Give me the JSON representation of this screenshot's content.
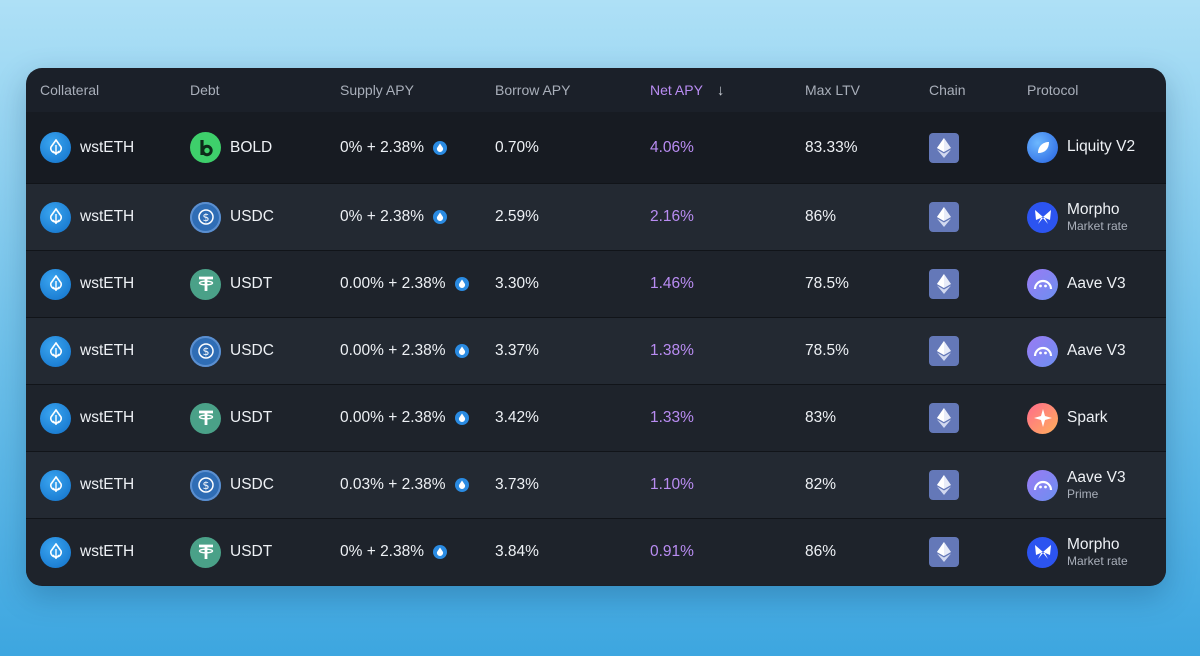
{
  "header": {
    "collateral": "Collateral",
    "debt": "Debt",
    "supply_apy": "Supply APY",
    "borrow_apy": "Borrow APY",
    "net_apy": "Net APY",
    "sort_icon": "arrow-down-icon",
    "max_ltv": "Max LTV",
    "chain": "Chain",
    "protocol": "Protocol"
  },
  "rows": [
    {
      "collateral": "wstETH",
      "debt": "BOLD",
      "debt_icon": "bold",
      "supply": "0% + 2.38%",
      "borrow": "0.70%",
      "net": "4.06%",
      "ltv": "83.33%",
      "chain": "ethereum",
      "protocol": "Liquity V2",
      "protocol_sub": "",
      "protocol_icon": "liquity"
    },
    {
      "collateral": "wstETH",
      "debt": "USDC",
      "debt_icon": "usdc",
      "supply": "0% + 2.38%",
      "borrow": "2.59%",
      "net": "2.16%",
      "ltv": "86%",
      "chain": "ethereum",
      "protocol": "Morpho",
      "protocol_sub": "Market rate",
      "protocol_icon": "morpho"
    },
    {
      "collateral": "wstETH",
      "debt": "USDT",
      "debt_icon": "usdt",
      "supply": "0.00% + 2.38%",
      "borrow": "3.30%",
      "net": "1.46%",
      "ltv": "78.5%",
      "chain": "ethereum",
      "protocol": "Aave V3",
      "protocol_sub": "",
      "protocol_icon": "aave"
    },
    {
      "collateral": "wstETH",
      "debt": "USDC",
      "debt_icon": "usdc",
      "supply": "0.00% + 2.38%",
      "borrow": "3.37%",
      "net": "1.38%",
      "ltv": "78.5%",
      "chain": "ethereum",
      "protocol": "Aave V3",
      "protocol_sub": "",
      "protocol_icon": "aave"
    },
    {
      "collateral": "wstETH",
      "debt": "USDT",
      "debt_icon": "usdt",
      "supply": "0.00% + 2.38%",
      "borrow": "3.42%",
      "net": "1.33%",
      "ltv": "83%",
      "chain": "ethereum",
      "protocol": "Spark",
      "protocol_sub": "",
      "protocol_icon": "spark"
    },
    {
      "collateral": "wstETH",
      "debt": "USDC",
      "debt_icon": "usdc",
      "supply": "0.03% + 2.38%",
      "borrow": "3.73%",
      "net": "1.10%",
      "ltv": "82%",
      "chain": "ethereum",
      "protocol": "Aave V3",
      "protocol_sub": "Prime",
      "protocol_icon": "aave"
    },
    {
      "collateral": "wstETH",
      "debt": "USDT",
      "debt_icon": "usdt",
      "supply": "0% + 2.38%",
      "borrow": "3.84%",
      "net": "0.91%",
      "ltv": "86%",
      "chain": "ethereum",
      "protocol": "Morpho",
      "protocol_sub": "Market rate",
      "protocol_icon": "morpho"
    }
  ]
}
